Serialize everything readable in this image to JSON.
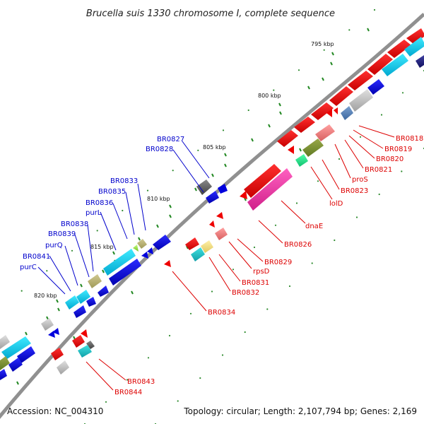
{
  "title": "Brucella suis 1330 chromosome I, complete sequence",
  "footer": {
    "accession": "Accession: NC_004310",
    "summary": "Topology: circular; Length: 2,107,794 bp; Genes: 2,169"
  },
  "scale_labels": [
    "795 kbp",
    "800 kbp",
    "805 kbp",
    "810 kbp",
    "815 kbp",
    "820 kbp"
  ],
  "outer_labels": [
    "BR0827",
    "BR0828",
    "BR0833",
    "BR0835",
    "BR0836",
    "purL",
    "BR0838",
    "BR0839",
    "purQ",
    "BR0841",
    "purC"
  ],
  "inner_labels": [
    "BR0818",
    "BR0819",
    "BR0820",
    "BR0821",
    "proS",
    "BR0823",
    "lolD",
    "dnaE",
    "BR0826",
    "BR0829",
    "rpsD",
    "BR0831",
    "BR0832",
    "BR0834",
    "BR0843",
    "BR0844"
  ],
  "colors": {
    "outer_label": "#0000cc",
    "inner_label": "#dd0000",
    "backbone": "#888888",
    "tick": "#228822"
  }
}
